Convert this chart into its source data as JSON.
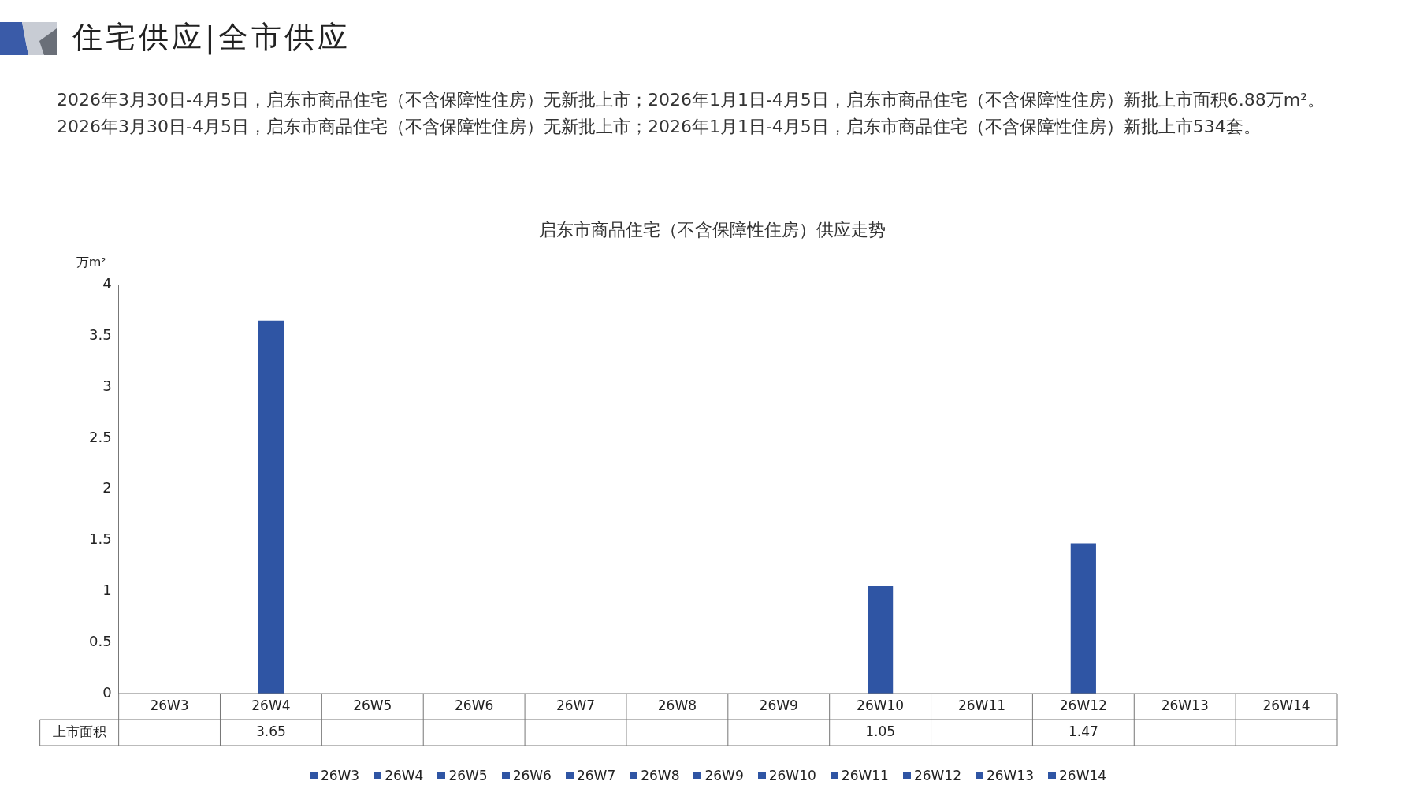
{
  "chart_data": {
    "type": "bar",
    "title": "启东市商品住宅（不含保障性住房）供应走势",
    "ylabel": "万m²",
    "annotations": [
      "住宅供应|全市供应",
      "2026年3月30日-4月5日，启东市商品住宅（不含保障性住房）无新批上市；2026年1月1日-4月5日，启东市商品住宅（不含保障性住房）新批上市面积6.88万m²。2026年3月30日-4月5日，启东市商品住宅（不含保障性住房）无新批上市；2026年1月1日-4月5日，启东市商品住宅（不含保障性住房）新批上市534套。"
    ],
    "categories": [
      "26W3",
      "26W4",
      "26W5",
      "26W6",
      "26W7",
      "26W8",
      "26W9",
      "26W10",
      "26W11",
      "26W12",
      "26W13",
      "26W14"
    ],
    "series": [
      {
        "name": "上市面积",
        "color": "#2f55a4",
        "values": [
          null,
          3.65,
          null,
          null,
          null,
          null,
          null,
          1.05,
          null,
          1.47,
          null,
          null
        ]
      }
    ],
    "ylim": [
      0,
      4
    ],
    "yticks": [
      0,
      0.5,
      1,
      1.5,
      2,
      2.5,
      3,
      3.5,
      4
    ],
    "grid": false,
    "legend": "bottom",
    "data_labels": true
  }
}
